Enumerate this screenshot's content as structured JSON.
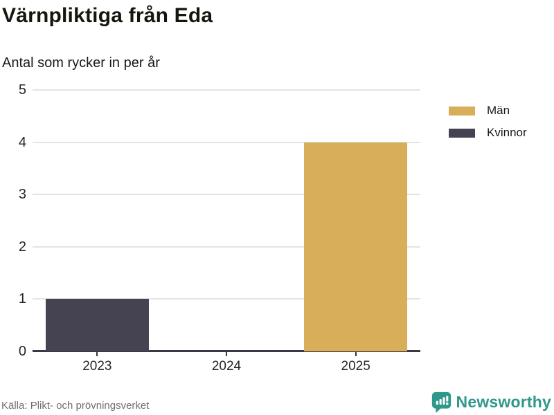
{
  "header": {
    "title": "Värnpliktiga från Eda",
    "subtitle": "Antal som rycker in per år"
  },
  "footer": {
    "source": "Källa: Plikt- och prövningsverket",
    "brand": "Newsworthy"
  },
  "colors": {
    "men": "#d9ae59",
    "women": "#454251",
    "axis": "#3a3845",
    "gridline": "#e4e4e4",
    "brand_teal": "#2f988a",
    "text_dark": "#16160f",
    "text_muted": "#6f6f6f"
  },
  "chart_data": {
    "type": "bar",
    "stacked": true,
    "title": "Värnpliktiga från Eda",
    "subtitle": "Antal som rycker in per år",
    "categories": [
      "2023",
      "2024",
      "2025"
    ],
    "series": [
      {
        "name": "Män",
        "color": "#d9ae59",
        "values": [
          0,
          0,
          4
        ]
      },
      {
        "name": "Kvinnor",
        "color": "#454251",
        "values": [
          1,
          0,
          0
        ]
      }
    ],
    "xlabel": "",
    "ylabel": "",
    "ylim": [
      0,
      5
    ],
    "yticks": [
      0,
      1,
      2,
      3,
      4,
      5
    ],
    "grid": true,
    "legend_position": "top-right",
    "bar_width_fraction": 0.8
  }
}
